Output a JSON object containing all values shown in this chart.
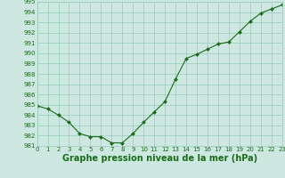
{
  "x": [
    0,
    1,
    2,
    3,
    4,
    5,
    6,
    7,
    8,
    9,
    10,
    11,
    12,
    13,
    14,
    15,
    16,
    17,
    18,
    19,
    20,
    21,
    22,
    23
  ],
  "y": [
    984.9,
    984.6,
    984.0,
    983.3,
    982.2,
    981.9,
    981.9,
    981.3,
    981.3,
    982.2,
    983.3,
    984.3,
    985.3,
    987.5,
    989.5,
    989.9,
    990.4,
    990.9,
    991.1,
    992.1,
    993.1,
    993.9,
    994.3,
    994.7
  ],
  "ylim": [
    981,
    995
  ],
  "xlim": [
    0,
    23
  ],
  "yticks": [
    981,
    982,
    983,
    984,
    985,
    986,
    987,
    988,
    989,
    990,
    991,
    992,
    993,
    994,
    995
  ],
  "xticks": [
    0,
    1,
    2,
    3,
    4,
    5,
    6,
    7,
    8,
    9,
    10,
    11,
    12,
    13,
    14,
    15,
    16,
    17,
    18,
    19,
    20,
    21,
    22,
    23
  ],
  "xlabel": "Graphe pression niveau de la mer (hPa)",
  "line_color": "#1a6b1a",
  "marker": "D",
  "marker_size": 2.0,
  "bg_color": "#cce8e0",
  "grid_color": "#99ccbb",
  "tick_label_color": "#1a6b1a",
  "xlabel_color": "#1a6b1a",
  "tick_fontsize": 5.0,
  "xlabel_fontsize": 7.0
}
